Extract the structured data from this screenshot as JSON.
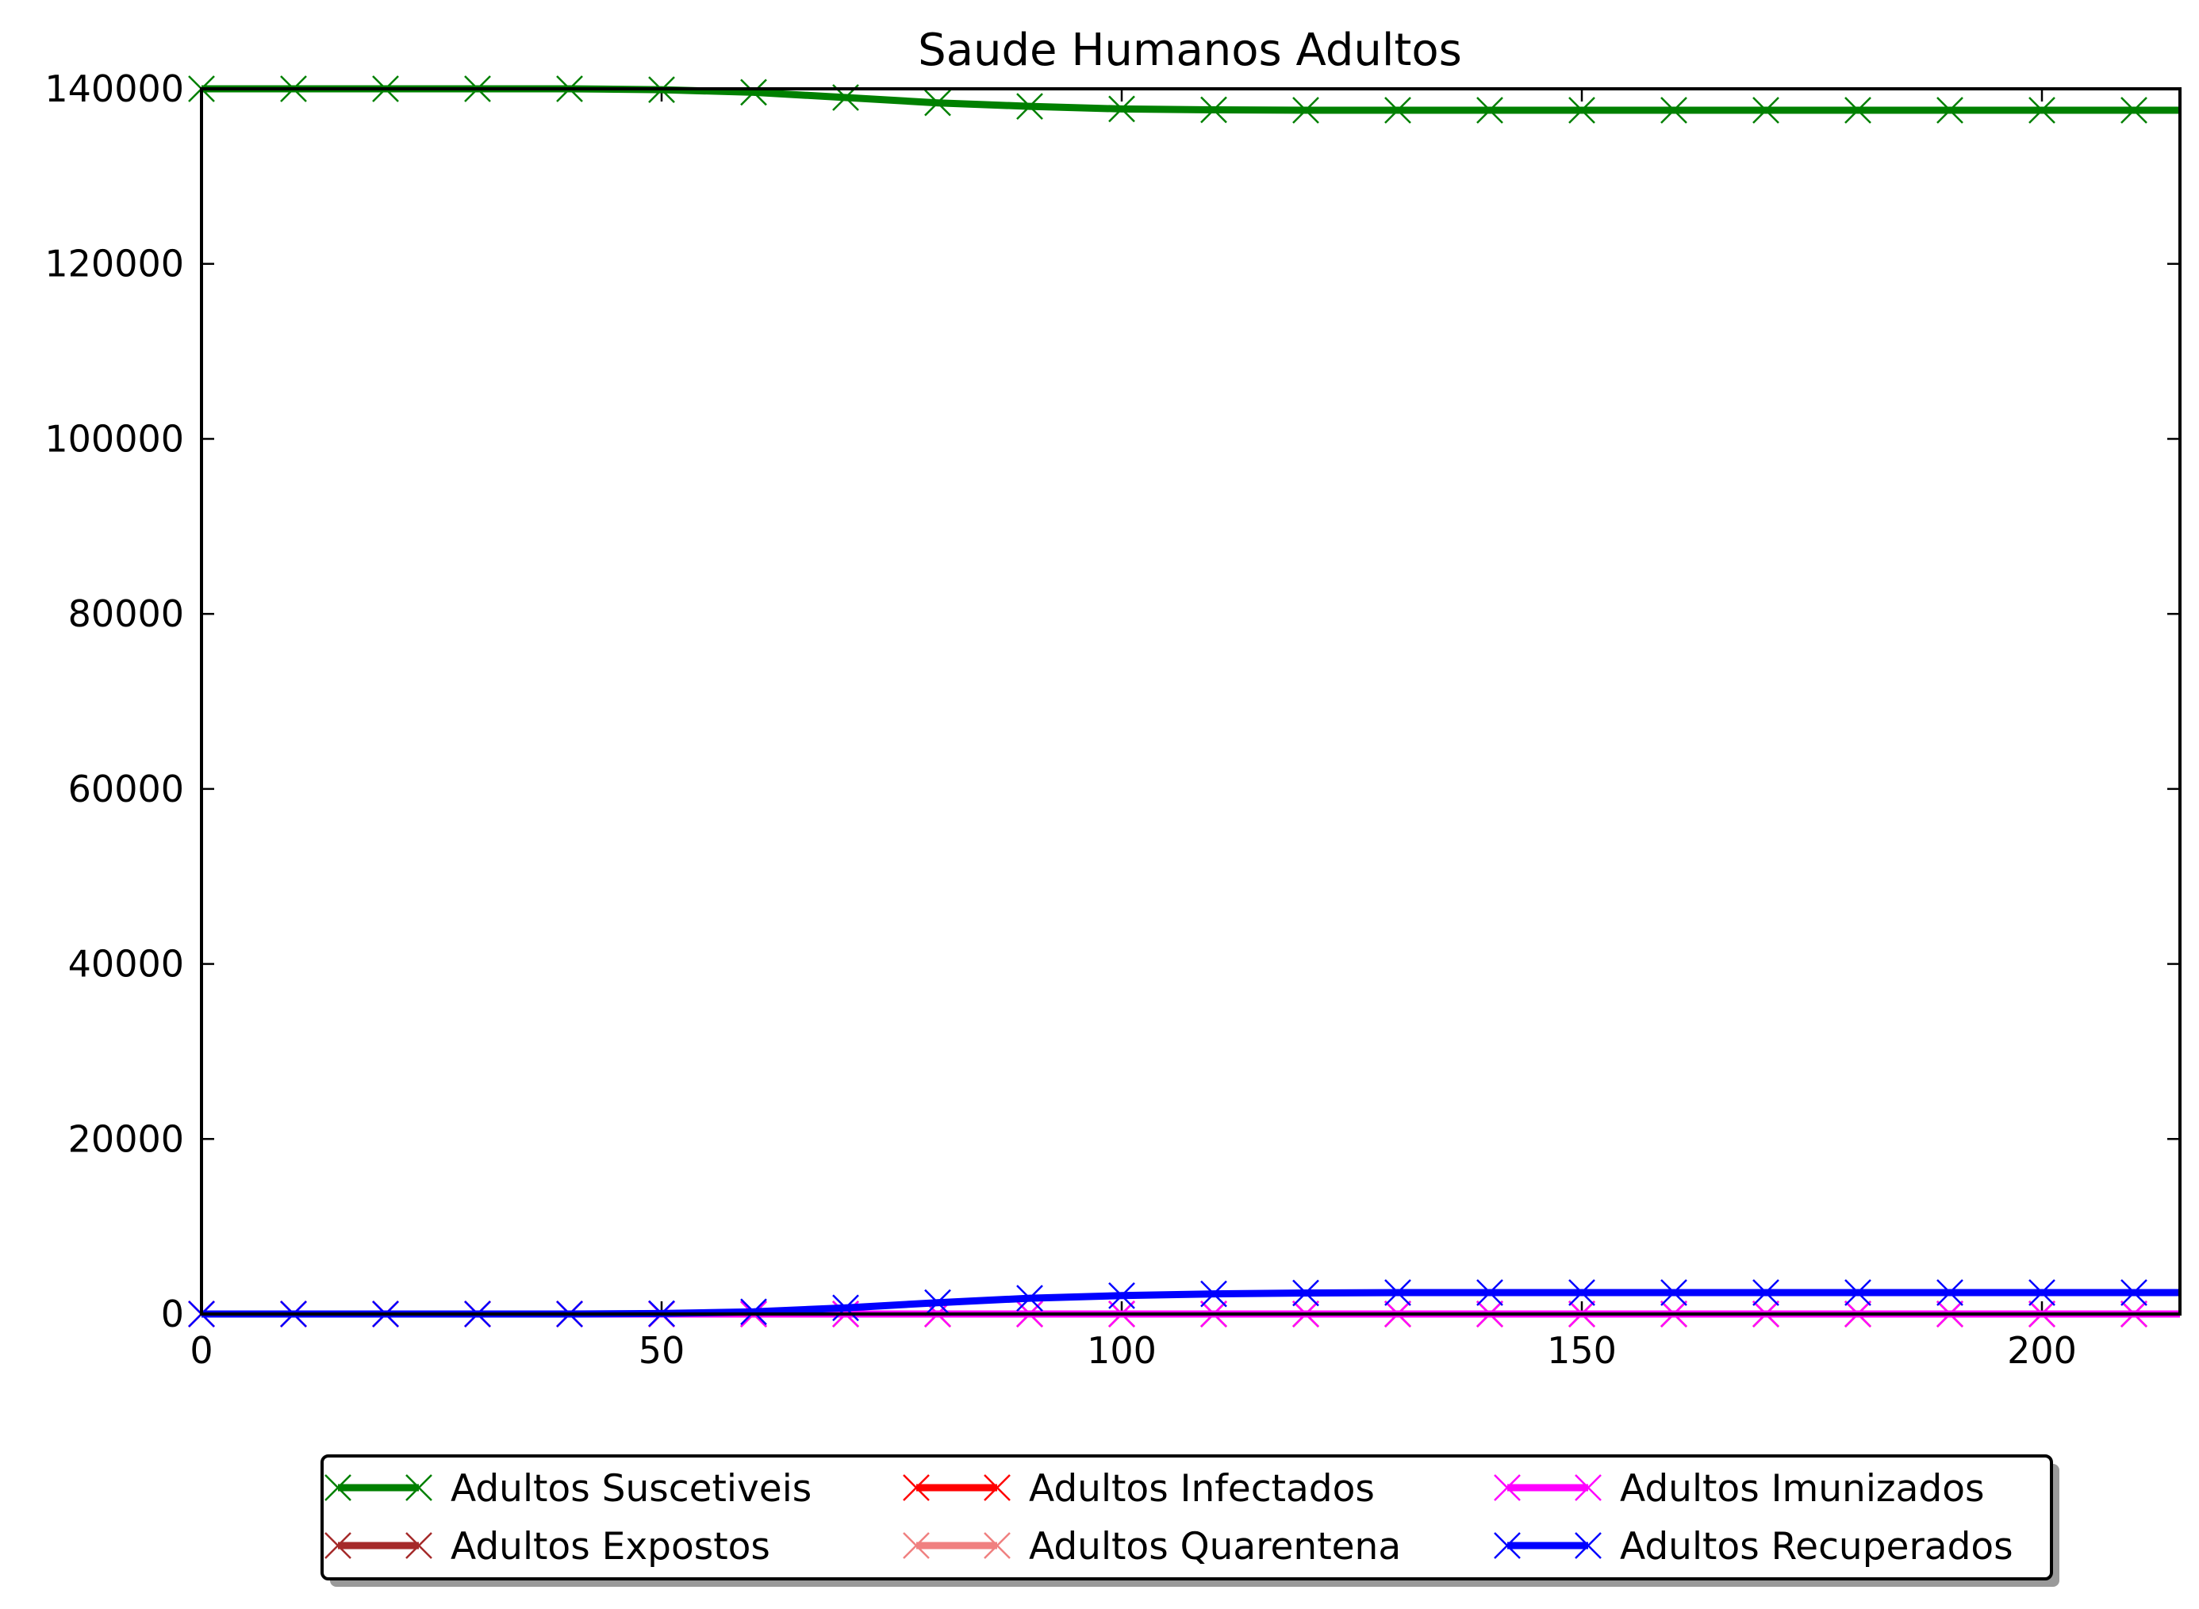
{
  "chart_data": {
    "type": "line",
    "title": "Saude Humanos Adultos",
    "xlabel": "",
    "ylabel": "",
    "xlim": [
      0,
      215
    ],
    "ylim": [
      0,
      140000
    ],
    "x_ticks": [
      "0",
      "50",
      "100",
      "150",
      "200"
    ],
    "y_ticks": [
      "0",
      "20000",
      "40000",
      "60000",
      "80000",
      "100000",
      "120000",
      "140000"
    ],
    "x_tick_values": [
      0,
      50,
      100,
      150,
      200
    ],
    "y_tick_values": [
      0,
      20000,
      40000,
      60000,
      80000,
      100000,
      120000,
      140000
    ],
    "grid": false,
    "legend_position": "below",
    "x": [
      0,
      10,
      20,
      30,
      40,
      50,
      60,
      70,
      80,
      90,
      100,
      110,
      120,
      130,
      140,
      150,
      160,
      170,
      180,
      190,
      200,
      210,
      215
    ],
    "series": [
      {
        "name": "Adultos Suscetiveis",
        "color": "#008000",
        "marker": "x",
        "values": [
          140000,
          140000,
          140000,
          140000,
          140000,
          139900,
          139600,
          139000,
          138400,
          138000,
          137700,
          137600,
          137550,
          137550,
          137550,
          137550,
          137550,
          137550,
          137550,
          137550,
          137550,
          137550,
          137550
        ]
      },
      {
        "name": "Adultos Expostos",
        "color": "#a52a2a",
        "marker": "x",
        "values": [
          0,
          0,
          0,
          0,
          0,
          0,
          0,
          0,
          0,
          0,
          0,
          0,
          0,
          0,
          0,
          0,
          0,
          0,
          0,
          0,
          0,
          0,
          0
        ]
      },
      {
        "name": "Adultos Infectados",
        "color": "#ff0000",
        "marker": "x",
        "values": [
          0,
          0,
          0,
          0,
          0,
          0,
          0,
          0,
          0,
          0,
          0,
          0,
          0,
          0,
          0,
          0,
          0,
          0,
          0,
          0,
          0,
          0,
          0
        ]
      },
      {
        "name": "Adultos Quarentena",
        "color": "#f08080",
        "marker": "x",
        "values": [
          0,
          0,
          0,
          0,
          0,
          0,
          0,
          0,
          0,
          0,
          0,
          0,
          0,
          0,
          0,
          0,
          0,
          0,
          0,
          0,
          0,
          0,
          0
        ]
      },
      {
        "name": "Adultos Imunizados",
        "color": "#ff00ff",
        "marker": "x",
        "values": [
          0,
          0,
          0,
          0,
          0,
          0,
          0,
          0,
          0,
          0,
          0,
          0,
          0,
          0,
          0,
          0,
          0,
          0,
          0,
          0,
          0,
          0,
          0
        ]
      },
      {
        "name": "Adultos Recuperados",
        "color": "#0000ff",
        "marker": "x",
        "values": [
          0,
          0,
          0,
          0,
          0,
          50,
          250,
          700,
          1300,
          1800,
          2100,
          2300,
          2400,
          2450,
          2450,
          2450,
          2450,
          2450,
          2450,
          2450,
          2450,
          2450,
          2450
        ]
      }
    ]
  }
}
